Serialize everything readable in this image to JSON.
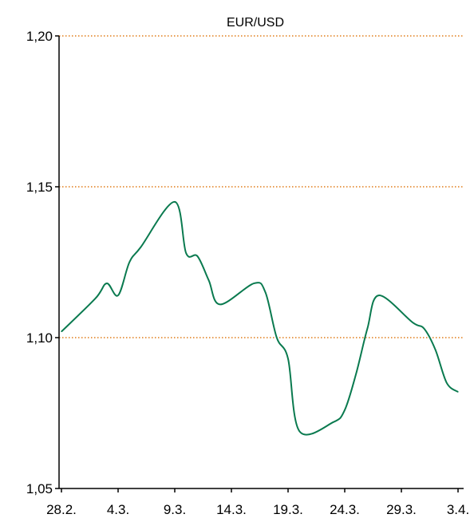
{
  "chart_data": {
    "type": "line",
    "title": "EUR/USD",
    "xlabel": "",
    "ylabel": "",
    "ylim": [
      1.05,
      1.2
    ],
    "y_ticks": [
      "1,05",
      "1,10",
      "1,15",
      "1,20"
    ],
    "y_tick_values": [
      1.05,
      1.1,
      1.15,
      1.2
    ],
    "x_ticks": [
      "28.2.",
      "4.3.",
      "9.3.",
      "14.3.",
      "19.3.",
      "24.3.",
      "29.3.",
      "3.4."
    ],
    "x_tick_values": [
      "2020-02-28",
      "2020-03-04",
      "2020-03-09",
      "2020-03-14",
      "2020-03-19",
      "2020-03-24",
      "2020-03-29",
      "2020-04-03"
    ],
    "grid_lines_at": [
      1.1,
      1.15,
      1.2
    ],
    "grid_style": "dotted",
    "series": [
      {
        "color": "#0a7a4f",
        "points": [
          {
            "x": "2020-02-28",
            "y": 1.102
          },
          {
            "x": "2020-03-02",
            "y": 1.113
          },
          {
            "x": "2020-03-03",
            "y": 1.118
          },
          {
            "x": "2020-03-04",
            "y": 1.114
          },
          {
            "x": "2020-03-05",
            "y": 1.125
          },
          {
            "x": "2020-03-06",
            "y": 1.13
          },
          {
            "x": "2020-03-09",
            "y": 1.145
          },
          {
            "x": "2020-03-10",
            "y": 1.128
          },
          {
            "x": "2020-03-11",
            "y": 1.127
          },
          {
            "x": "2020-03-12",
            "y": 1.119
          },
          {
            "x": "2020-03-13",
            "y": 1.111
          },
          {
            "x": "2020-03-16",
            "y": 1.118
          },
          {
            "x": "2020-03-17",
            "y": 1.115
          },
          {
            "x": "2020-03-18",
            "y": 1.1
          },
          {
            "x": "2020-03-19",
            "y": 1.093
          },
          {
            "x": "2020-03-20",
            "y": 1.069
          },
          {
            "x": "2020-03-23",
            "y": 1.072
          },
          {
            "x": "2020-03-24",
            "y": 1.076
          },
          {
            "x": "2020-03-25",
            "y": 1.088
          },
          {
            "x": "2020-03-26",
            "y": 1.103
          },
          {
            "x": "2020-03-27",
            "y": 1.114
          },
          {
            "x": "2020-03-30",
            "y": 1.105
          },
          {
            "x": "2020-03-31",
            "y": 1.103
          },
          {
            "x": "2020-04-01",
            "y": 1.096
          },
          {
            "x": "2020-04-02",
            "y": 1.085
          },
          {
            "x": "2020-04-03",
            "y": 1.082
          }
        ]
      }
    ],
    "colors": {
      "line": "#0a7a4f",
      "grid": "#e07b16",
      "axis": "#000000"
    }
  }
}
